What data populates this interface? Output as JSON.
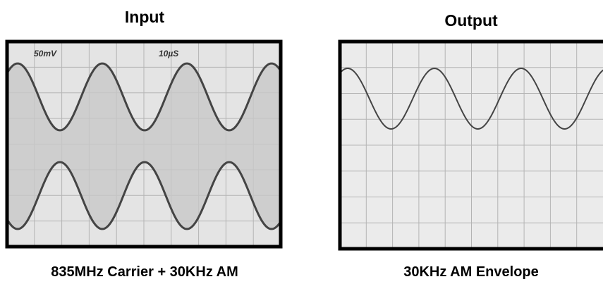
{
  "input": {
    "title": "Input",
    "scale_labels": [
      "50mV",
      "10µS"
    ],
    "caption": "835MHz Carrier + 30KHz AM"
  },
  "output": {
    "title": "Output",
    "caption": "30KHz AM Envelope"
  }
}
